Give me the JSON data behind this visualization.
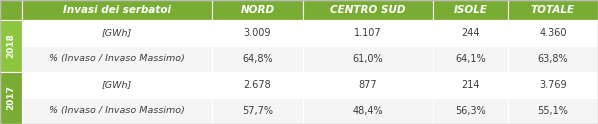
{
  "header_col": "Invasi dei serbatoi",
  "columns": [
    "NORD",
    "CENTRO SUD",
    "ISOLE",
    "TOTALE"
  ],
  "rows": [
    {
      "year": "2018",
      "label": "[GWh]",
      "values": [
        "3.009",
        "1.107",
        "244",
        "4.360"
      ]
    },
    {
      "year": "2018",
      "label": "% (Invaso / Invaso Massimo)",
      "values": [
        "64,8%",
        "61,0%",
        "64,1%",
        "63,8%"
      ]
    },
    {
      "year": "2017",
      "label": "[GWh]",
      "values": [
        "2.678",
        "877",
        "214",
        "3.769"
      ]
    },
    {
      "year": "2017",
      "label": "% (Invaso / Invaso Massimo)",
      "values": [
        "57,7%",
        "48,4%",
        "56,3%",
        "55,1%"
      ]
    }
  ],
  "header_bg": "#79ac32",
  "header_text_color": "#ffffff",
  "year_bg_2018": "#8cc63f",
  "year_bg_2017": "#79ac32",
  "row_bg_light": "#f5f5f5",
  "row_bg_white": "#ffffff",
  "cell_text_color": "#3c3c3c",
  "year_text_color": "#ffffff",
  "fig_width": 5.98,
  "fig_height": 1.24,
  "dpi": 100
}
